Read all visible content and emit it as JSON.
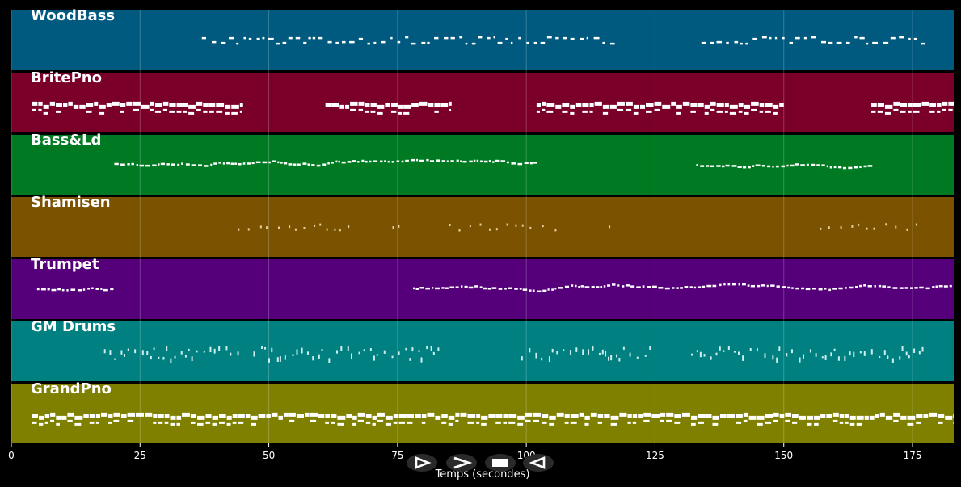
{
  "chart_data": {
    "type": "piano-roll",
    "xlabel": "Temps (secondes)",
    "xlim": [
      0,
      183
    ],
    "x_ticks": [
      0,
      25,
      50,
      75,
      100,
      125,
      150,
      175
    ],
    "grid": true,
    "tracks": [
      {
        "name": "WoodBass",
        "color": "#005a80",
        "active_segments": [
          [
            37,
            117
          ],
          [
            134,
            178
          ]
        ],
        "style": "sparse-two-row"
      },
      {
        "name": "BritePno",
        "color": "#7a0029",
        "active_segments": [
          [
            4,
            45
          ],
          [
            61,
            85.5
          ],
          [
            102,
            150
          ],
          [
            167,
            183
          ]
        ],
        "style": "chords"
      },
      {
        "name": "Bass&Ld",
        "color": "#007a22",
        "active_segments": [
          [
            20,
            102
          ],
          [
            133,
            167
          ]
        ],
        "style": "dense-melody"
      },
      {
        "name": "Shamisen",
        "color": "#7a5200",
        "active_segments": [
          [
            44,
            66
          ],
          [
            74,
            76
          ],
          [
            85,
            106
          ],
          [
            116,
            117
          ],
          [
            157,
            177
          ]
        ],
        "style": "sparse"
      },
      {
        "name": "Trumpet",
        "color": "#55007a",
        "active_segments": [
          [
            5,
            20
          ],
          [
            78,
            183
          ]
        ],
        "style": "melody"
      },
      {
        "name": "GM Drums",
        "color": "#008080",
        "active_segments": [
          [
            18,
            44
          ],
          [
            47,
            83
          ],
          [
            99,
            124
          ],
          [
            132,
            177
          ]
        ],
        "style": "drums"
      },
      {
        "name": "GrandPno",
        "color": "#808000",
        "active_segments": [
          [
            4,
            183
          ]
        ],
        "style": "chords"
      }
    ]
  },
  "controls": {
    "play_icon": "play-icon",
    "fast_forward_icon": "fast-forward-icon",
    "stop_icon": "stop-icon",
    "rewind_icon": "rewind-icon"
  }
}
